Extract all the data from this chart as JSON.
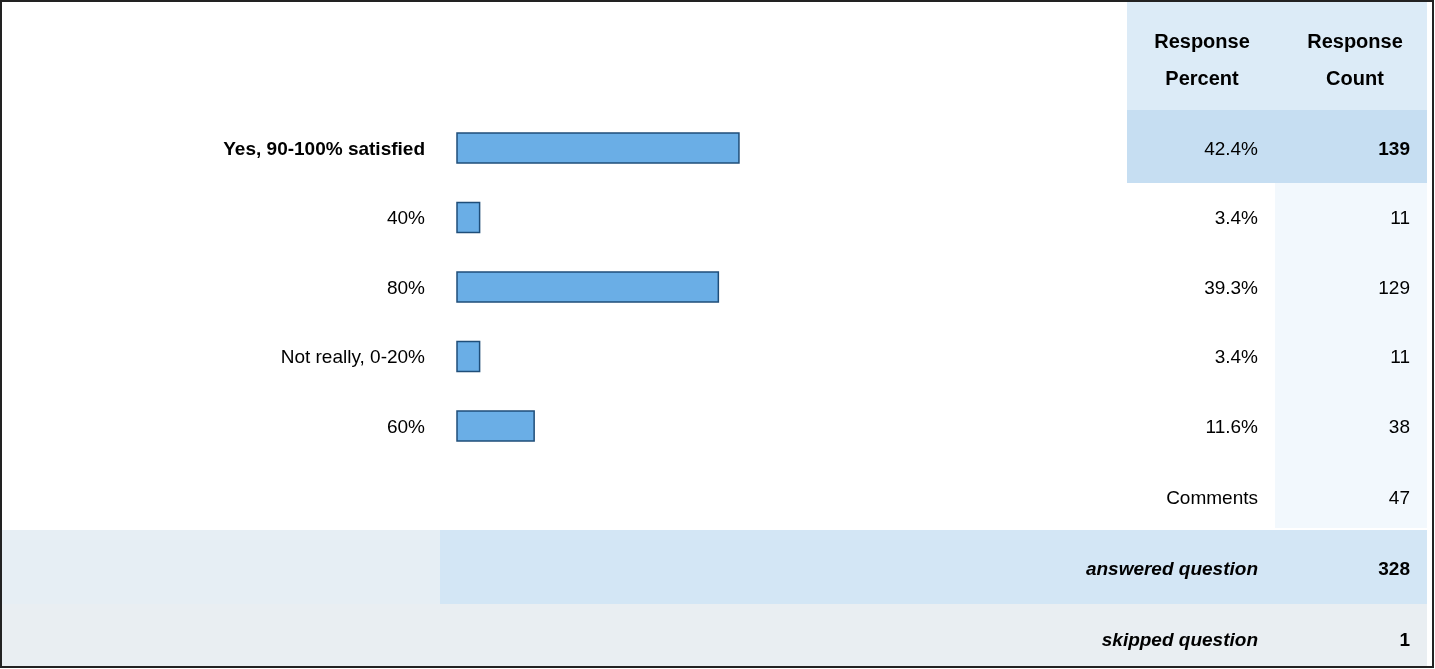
{
  "chart_data": {
    "type": "bar",
    "orientation": "horizontal",
    "data_labels": true,
    "categories": [
      "Yes, 90-100% satisfied",
      "40%",
      "80%",
      "Not really, 0-20%",
      "60%"
    ],
    "values": [
      42.4,
      3.4,
      39.3,
      3.4,
      11.6
    ],
    "value_labels": [
      "42.4%",
      "3.4%",
      "39.3%",
      "3.4%",
      "11.6%"
    ],
    "color": "#6aaee6",
    "annotations": [
      "Response Percent",
      "Response Count",
      "139",
      "11",
      "129",
      "11",
      "38",
      "Comments",
      "47",
      "answered question",
      "328",
      "skipped question",
      "1"
    ]
  }
}
